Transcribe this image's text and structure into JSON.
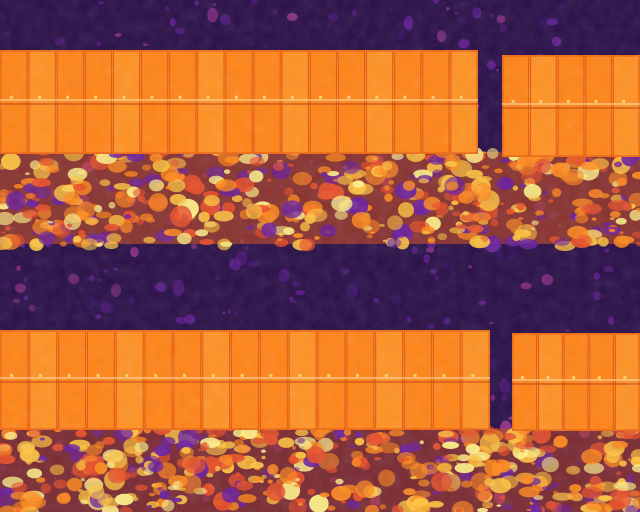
{
  "image": {
    "kind": "aerial thermal infrared photograph",
    "palette": [
      "#1e0a3a",
      "#3a146a",
      "#6a1fa0",
      "#b03aa0",
      "#e8502a",
      "#ff8a1e",
      "#ffc640",
      "#fff28a"
    ],
    "panel_arrays": [
      {
        "name": "upper-left-array",
        "modules": 17
      },
      {
        "name": "upper-right-array",
        "modules": 5
      },
      {
        "name": "lower-left-array",
        "modules": 17
      },
      {
        "name": "lower-right-array",
        "modules": 5
      }
    ]
  }
}
